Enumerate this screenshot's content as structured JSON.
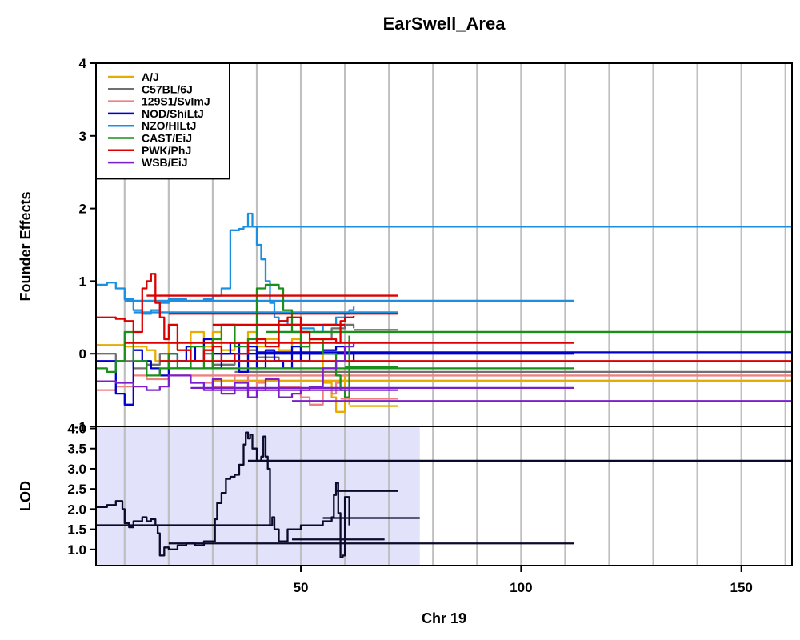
{
  "chart_data": {
    "type": "line",
    "title": "EarSwell_Area",
    "xlabel": "Chr 19",
    "xlim": [
      3.5,
      161.5
    ],
    "x_ticks": [
      50,
      100,
      150
    ],
    "x_tick_labels": [
      "50",
      "100",
      "150"
    ],
    "grid_x": [
      10,
      20,
      30,
      40,
      50,
      60,
      70,
      80,
      90,
      100,
      110,
      120,
      130,
      140,
      150,
      160
    ],
    "legend_position": "top-left",
    "panels": [
      {
        "name": "founder-effects",
        "ylabel": "Founder Effects",
        "ylim": [
          -1,
          4
        ],
        "y_ticks": [
          -1,
          0,
          1,
          2,
          3,
          4
        ],
        "y_tick_labels": [
          "-1",
          "0",
          "1",
          "2",
          "3",
          "4"
        ],
        "series": [
          {
            "name": "A/J",
            "color": "#E6AC00",
            "x": [
              3.5,
              10,
              15,
              17,
              20,
              22,
              25,
              28,
              30,
              32,
              35,
              38,
              40,
              42,
              45,
              48,
              50,
              52,
              55,
              57,
              58,
              60,
              61
            ],
            "y": [
              0.12,
              0.1,
              0.05,
              -0.1,
              0.15,
              0.05,
              0.3,
              0.1,
              0.3,
              0.05,
              0.15,
              0.3,
              0.1,
              0.2,
              0.05,
              0.2,
              0.1,
              0.2,
              -0.4,
              -0.6,
              -0.8,
              -0.3,
              -0.7
            ],
            "tails": [
              [
                61,
                72,
                -0.72
              ],
              [
                30,
                161.5,
                -0.37
              ],
              [
                50,
                60,
                -0.25
              ]
            ]
          },
          {
            "name": "C57BL/6J",
            "color": "#707070",
            "x": [
              3.5,
              8,
              12,
              15,
              18,
              20,
              25,
              28,
              30,
              35,
              38,
              40,
              45,
              50,
              52,
              55,
              57,
              60,
              62
            ],
            "y": [
              0,
              -0.1,
              -0.2,
              -0.15,
              0,
              -0.2,
              -0.1,
              0,
              -0.15,
              -0.1,
              0.05,
              -0.05,
              -0.1,
              0.1,
              0,
              0.2,
              0.35,
              0.4,
              0.35
            ],
            "tails": [
              [
                62,
                72,
                0.33
              ],
              [
                35,
                161.5,
                -0.25
              ]
            ]
          },
          {
            "name": "129S1/SvImJ",
            "color": "#F08080",
            "x": [
              3.5,
              8,
              12,
              15,
              20,
              25,
              30,
              35,
              38,
              40,
              42,
              45,
              50,
              52,
              55,
              57,
              58,
              59
            ],
            "y": [
              -0.5,
              -0.45,
              -0.3,
              -0.35,
              -0.3,
              -0.4,
              -0.45,
              -0.3,
              -0.5,
              -0.4,
              -0.5,
              -0.45,
              -0.6,
              -0.7,
              -0.5,
              -0.55,
              -0.4,
              -0.35
            ],
            "tails": [
              [
                59,
                72,
                -0.62
              ],
              [
                25,
                161.5,
                -0.3
              ]
            ]
          },
          {
            "name": "NOD/ShiLtJ",
            "color": "#0000CC",
            "x": [
              3.5,
              8,
              10,
              12,
              14,
              16,
              18,
              20,
              22,
              24,
              26,
              28,
              30,
              32,
              34,
              36,
              38,
              40,
              42,
              44,
              46,
              48,
              50,
              52,
              55,
              58,
              60,
              62
            ],
            "y": [
              -0.1,
              -0.55,
              -0.7,
              0.05,
              -0.1,
              -0.2,
              -0.3,
              0,
              -0.1,
              0.1,
              -0.1,
              0.2,
              -0.2,
              0,
              0.15,
              -0.25,
              0.1,
              -0.2,
              0.05,
              -0.1,
              -0.2,
              0.1,
              -0.1,
              0,
              0.05,
              0.1,
              0,
              -0.1
            ],
            "tails": [
              [
                62,
                72,
                -0.18
              ],
              [
                40,
                161.5,
                0.02
              ],
              [
                30,
                112,
                0
              ]
            ]
          },
          {
            "name": "NZO/HlLtJ",
            "color": "#1E8FE0",
            "x": [
              3.5,
              6,
              8,
              10,
              12,
              14,
              16,
              18,
              20,
              24,
              28,
              30,
              32,
              34,
              36,
              37,
              38,
              39,
              40,
              41,
              42,
              43,
              44,
              45,
              47,
              50,
              53,
              55,
              58,
              60,
              61,
              62
            ],
            "y": [
              0.95,
              0.98,
              0.9,
              0.75,
              0.6,
              0.55,
              0.6,
              0.7,
              0.75,
              0.72,
              0.75,
              0.8,
              0.9,
              1.7,
              1.72,
              1.75,
              1.93,
              1.75,
              1.5,
              1.3,
              1.0,
              0.7,
              0.5,
              0.45,
              0.4,
              0.35,
              0.3,
              0.4,
              0.5,
              0.55,
              0.6,
              0.65
            ],
            "tails": [
              [
                38,
                161.5,
                1.75
              ],
              [
                10,
                112,
                0.73
              ],
              [
                12,
                72,
                0.57
              ]
            ]
          },
          {
            "name": "CAST/EiJ",
            "color": "#1A8F1A",
            "x": [
              3.5,
              6,
              8,
              10,
              12,
              15,
              18,
              20,
              22,
              25,
              28,
              30,
              32,
              35,
              38,
              40,
              42,
              44,
              45,
              46,
              48,
              50,
              52,
              55,
              58,
              59,
              60,
              61
            ],
            "y": [
              -0.2,
              -0.25,
              -0.1,
              0.3,
              -0.1,
              -0.3,
              -0.2,
              0,
              -0.2,
              0.1,
              -0.2,
              0.2,
              0.4,
              0.1,
              0.2,
              0.9,
              0.95,
              0.95,
              0.9,
              0.6,
              0.3,
              0.1,
              0.2,
              0,
              -0.3,
              -0.5,
              -0.6,
              0.25
            ],
            "tails": [
              [
                42,
                161.5,
                0.3
              ],
              [
                60,
                72,
                -0.18
              ],
              [
                20,
                112,
                -0.2
              ]
            ]
          },
          {
            "name": "PWK/PhJ",
            "color": "#DD0000",
            "x": [
              3.5,
              8,
              10,
              12,
              14,
              15,
              16,
              17,
              18,
              19,
              20,
              22,
              25,
              28,
              30,
              32,
              35,
              38,
              40,
              42,
              45,
              47,
              50,
              52,
              55,
              57,
              58,
              59,
              60,
              62
            ],
            "y": [
              0.5,
              0.48,
              0.45,
              0.3,
              0.9,
              1.0,
              1.1,
              0.7,
              0.5,
              0.2,
              0.4,
              0.05,
              -0.1,
              0.05,
              0.1,
              -0.1,
              0,
              0.15,
              0.2,
              0.1,
              0.45,
              0.5,
              0.3,
              0.2,
              0.2,
              0.2,
              0.15,
              0.45,
              0.5,
              0.52
            ],
            "tails": [
              [
                18,
                161.5,
                -0.1
              ],
              [
                10,
                112,
                0.15
              ],
              [
                15,
                72,
                0.8
              ],
              [
                20,
                72,
                0.55
              ],
              [
                30,
                60,
                0.4
              ]
            ]
          },
          {
            "name": "WSB/EiJ",
            "color": "#7B1FCC",
            "x": [
              3.5,
              8,
              12,
              15,
              18,
              20,
              25,
              28,
              30,
              32,
              35,
              38,
              40,
              42,
              45,
              48,
              50,
              52,
              55,
              58,
              60,
              62
            ],
            "y": [
              -0.38,
              -0.4,
              -0.45,
              -0.5,
              -0.45,
              -0.3,
              -0.4,
              -0.5,
              -0.35,
              -0.55,
              -0.4,
              -0.6,
              -0.5,
              -0.35,
              -0.6,
              -0.55,
              -0.5,
              -0.45,
              -0.2,
              -0.1,
              0.1,
              0.15
            ],
            "tails": [
              [
                48,
                161.5,
                -0.65
              ],
              [
                25,
                112,
                -0.47
              ],
              [
                30,
                72,
                -0.5
              ]
            ]
          }
        ]
      },
      {
        "name": "lod",
        "ylabel": "LOD",
        "ylim": [
          0.6,
          4.05
        ],
        "y_ticks": [
          1.0,
          1.5,
          2.0,
          2.5,
          3.0,
          3.5,
          4.0
        ],
        "y_tick_labels": [
          "1.0",
          "1.5",
          "2.0",
          "2.5",
          "3.0",
          "3.5",
          "4.0"
        ],
        "shaded_region_x": [
          3.5,
          77
        ],
        "series": [
          {
            "name": "",
            "color": "#0a0a2a",
            "x": [
              3.5,
              6,
              8,
              9.5,
              10,
              11,
              12,
              14,
              15,
              16,
              17,
              17.5,
              18,
              19,
              20,
              22,
              24,
              26,
              28,
              30,
              30.5,
              31,
              32,
              33,
              34,
              35,
              36,
              37,
              37.5,
              38,
              38.5,
              39,
              40,
              41,
              41.5,
              42,
              42.5,
              43,
              43.5,
              44,
              45,
              47,
              50,
              52,
              55,
              57,
              57.5,
              58,
              58.5,
              59,
              59.5,
              60,
              61
            ],
            "y": [
              2.05,
              2.1,
              2.2,
              2.0,
              1.65,
              1.55,
              1.7,
              1.8,
              1.7,
              1.75,
              1.6,
              1.4,
              0.85,
              1.05,
              1.0,
              1.1,
              1.15,
              1.1,
              1.2,
              1.2,
              1.75,
              2.15,
              2.4,
              2.75,
              2.8,
              2.85,
              3.1,
              3.6,
              3.9,
              3.75,
              3.85,
              3.5,
              3.2,
              3.3,
              3.8,
              3.3,
              3.0,
              1.6,
              1.8,
              1.5,
              1.2,
              1.5,
              1.6,
              1.6,
              1.7,
              1.8,
              2.35,
              2.65,
              1.9,
              0.8,
              0.85,
              2.3,
              1.6
            ],
            "tails": [
              [
                38,
                161.5,
                3.2
              ],
              [
                55,
                77,
                1.78
              ],
              [
                3.5,
                43,
                1.6
              ],
              [
                20,
                112,
                1.15
              ],
              [
                58,
                72,
                2.45
              ],
              [
                48,
                69,
                1.25
              ]
            ]
          }
        ]
      }
    ]
  }
}
